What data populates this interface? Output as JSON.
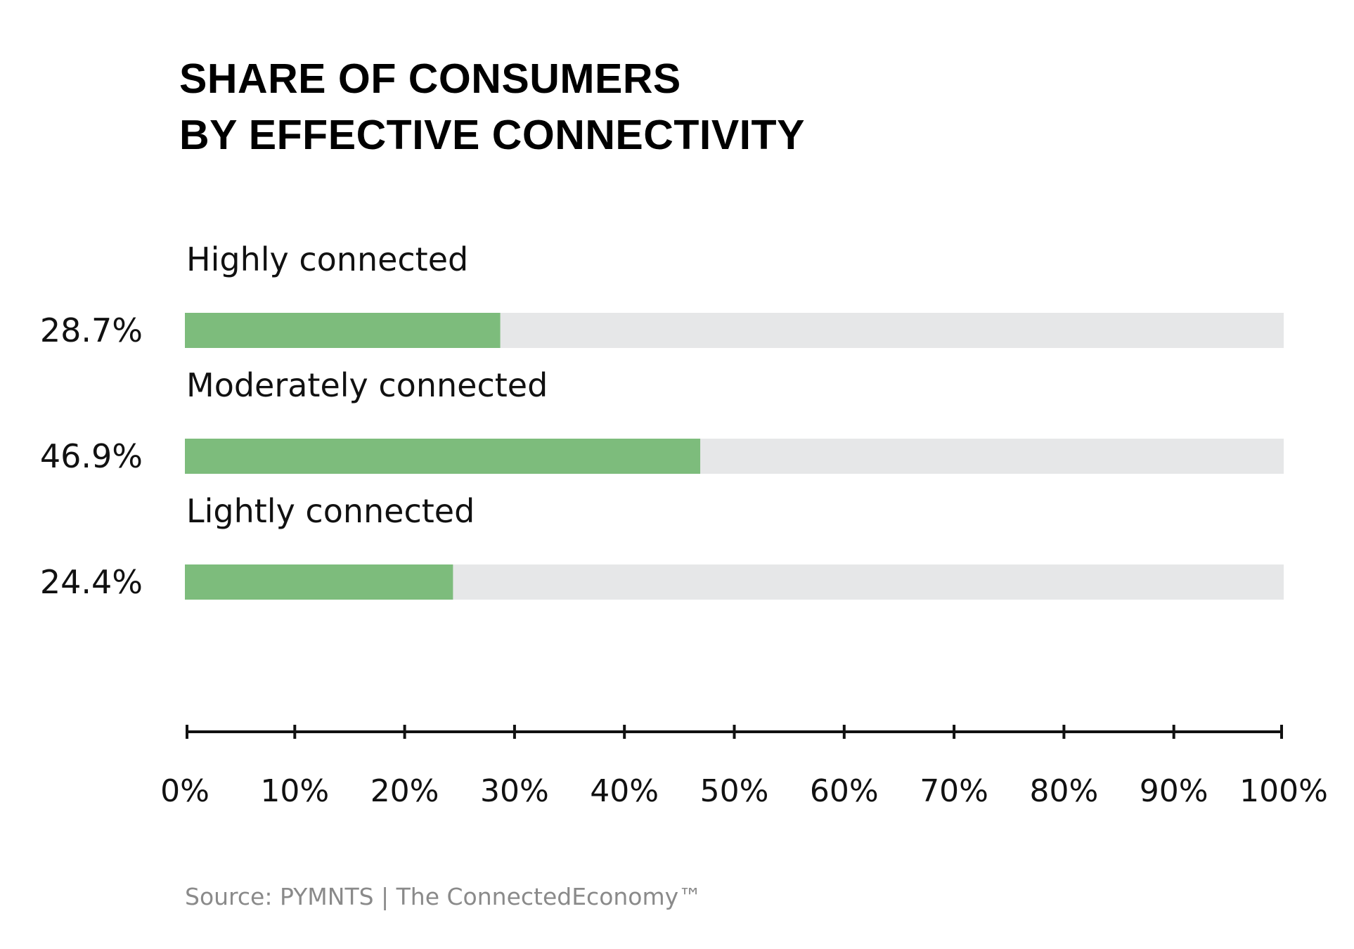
{
  "chart_data": {
    "type": "bar",
    "orientation": "horizontal",
    "title_lines": [
      "SHARE OF CONSUMERS",
      "BY EFFECTIVE CONNECTIVITY"
    ],
    "categories": [
      "Highly connected",
      "Moderately connected",
      "Lightly connected"
    ],
    "values": [
      28.7,
      46.9,
      24.4
    ],
    "value_labels": [
      "28.7%",
      "46.9%",
      "24.4%"
    ],
    "xlim": [
      0,
      100
    ],
    "x_ticks": [
      0,
      10,
      20,
      30,
      40,
      50,
      60,
      70,
      80,
      90,
      100
    ],
    "x_tick_labels": [
      "0%",
      "10%",
      "20%",
      "30%",
      "40%",
      "50%",
      "60%",
      "70%",
      "80%",
      "90%",
      "100%"
    ],
    "grid": false,
    "legend": "none",
    "colors": {
      "bar_fill": "#7dbc7c",
      "bar_track": "#e6e7e8",
      "axis": "#111111"
    }
  },
  "source": "Source: PYMNTS | The ConnectedEconomy™"
}
